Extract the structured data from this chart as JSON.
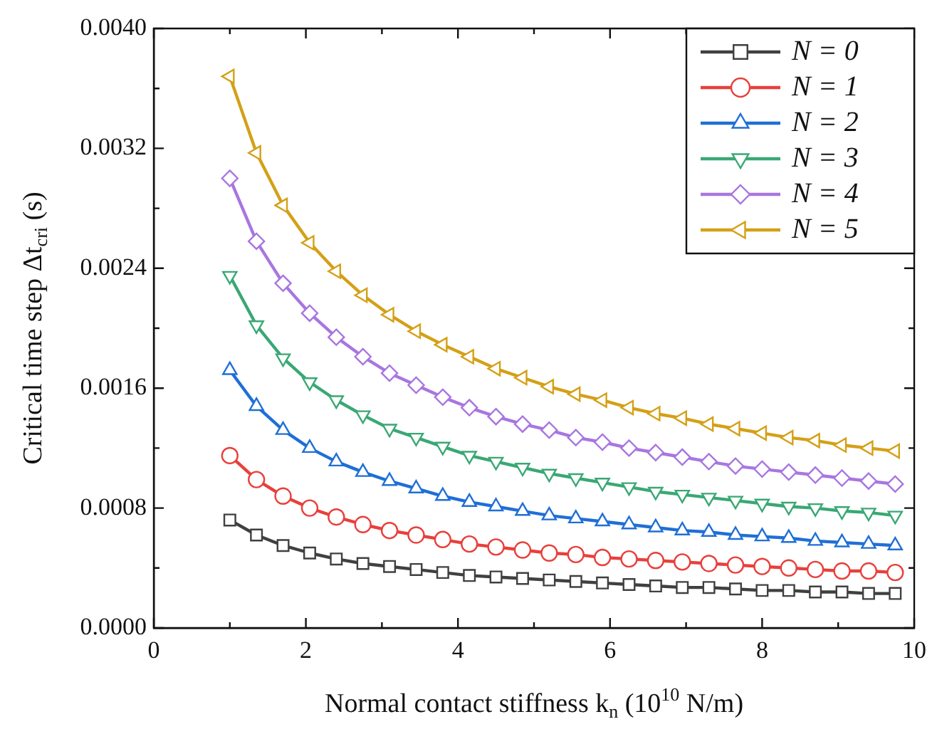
{
  "chart_data": {
    "type": "line",
    "xlabel": "Normal contact stiffness k$_{n}$ (10$^{10}$ N/m)",
    "ylabel": "Critical time step Δt$_{cri}$ (s)",
    "x": [
      1,
      1.35,
      1.7,
      2.05,
      2.4,
      2.75,
      3.1,
      3.45,
      3.8,
      4.15,
      4.5,
      4.85,
      5.2,
      5.55,
      5.9,
      6.25,
      6.6,
      6.95,
      7.3,
      7.65,
      8.0,
      8.35,
      8.7,
      9.05,
      9.4,
      9.75
    ],
    "series": [
      {
        "name": "N = 0",
        "color": "#404040",
        "marker": "square",
        "values": [
          0.00072,
          0.00062,
          0.00055,
          0.0005,
          0.00046,
          0.00043,
          0.00041,
          0.00039,
          0.00037,
          0.00035,
          0.00034,
          0.00033,
          0.00032,
          0.00031,
          0.0003,
          0.00029,
          0.00028,
          0.00027,
          0.00027,
          0.00026,
          0.00025,
          0.00025,
          0.00024,
          0.00024,
          0.00023,
          0.00023
        ]
      },
      {
        "name": "N = 1",
        "color": "#e8403c",
        "marker": "circle",
        "values": [
          0.00115,
          0.00099,
          0.00088,
          0.0008,
          0.00074,
          0.00069,
          0.00065,
          0.00062,
          0.00059,
          0.00056,
          0.00054,
          0.00052,
          0.0005,
          0.00049,
          0.00047,
          0.00046,
          0.00045,
          0.00044,
          0.00043,
          0.00042,
          0.00041,
          0.0004,
          0.00039,
          0.00038,
          0.00038,
          0.00037
        ]
      },
      {
        "name": "N = 2",
        "color": "#1f6fd6",
        "marker": "triangle",
        "values": [
          0.00172,
          0.00148,
          0.00132,
          0.0012,
          0.00111,
          0.00104,
          0.00098,
          0.00093,
          0.00088,
          0.00084,
          0.00081,
          0.00078,
          0.00075,
          0.00073,
          0.00071,
          0.00069,
          0.00067,
          0.00065,
          0.00064,
          0.00062,
          0.00061,
          0.0006,
          0.00058,
          0.00057,
          0.00056,
          0.00055
        ]
      },
      {
        "name": "N = 3",
        "color": "#3aa874",
        "marker": "triangle-down",
        "values": [
          0.00235,
          0.00202,
          0.0018,
          0.00164,
          0.00152,
          0.00142,
          0.00133,
          0.00127,
          0.00121,
          0.00115,
          0.00111,
          0.00107,
          0.00103,
          0.001,
          0.00097,
          0.00094,
          0.00091,
          0.00089,
          0.00087,
          0.00085,
          0.00083,
          0.00081,
          0.0008,
          0.00078,
          0.00077,
          0.00075
        ]
      },
      {
        "name": "N = 4",
        "color": "#a876e0",
        "marker": "diamond",
        "values": [
          0.003,
          0.00258,
          0.0023,
          0.0021,
          0.00194,
          0.00181,
          0.0017,
          0.00162,
          0.00154,
          0.00147,
          0.00141,
          0.00136,
          0.00132,
          0.00127,
          0.00124,
          0.0012,
          0.00117,
          0.00114,
          0.00111,
          0.00108,
          0.00106,
          0.00104,
          0.00102,
          0.001,
          0.00098,
          0.00096
        ]
      },
      {
        "name": "N = 5",
        "color": "#d4a017",
        "marker": "triangle-left",
        "values": [
          0.00368,
          0.00317,
          0.00282,
          0.00257,
          0.00238,
          0.00222,
          0.00209,
          0.00198,
          0.00189,
          0.00181,
          0.00173,
          0.00167,
          0.00161,
          0.00156,
          0.00152,
          0.00147,
          0.00143,
          0.0014,
          0.00136,
          0.00133,
          0.0013,
          0.00127,
          0.00125,
          0.00122,
          0.0012,
          0.00118
        ]
      }
    ],
    "xlim": [
      0,
      10
    ],
    "xticks": [
      0,
      {
        "value": 1,
        "label": null
      },
      2,
      {
        "value": 3,
        "label": null
      },
      4,
      {
        "value": 5,
        "label": null
      },
      6,
      {
        "value": 7,
        "label": null
      },
      8,
      {
        "value": 9,
        "label": null
      },
      10
    ],
    "ylim": [
      0,
      0.004
    ],
    "yticks": [
      {
        "value": 0,
        "label": "0.0000"
      },
      {
        "value": 0.0004,
        "label": null
      },
      {
        "value": 0.0008,
        "label": "0.0008"
      },
      {
        "value": 0.0012,
        "label": null
      },
      {
        "value": 0.0016,
        "label": "0.0016"
      },
      {
        "value": 0.002,
        "label": null
      },
      {
        "value": 0.0024,
        "label": "0.0024"
      },
      {
        "value": 0.0028,
        "label": null
      },
      {
        "value": 0.0032,
        "label": "0.0032"
      },
      {
        "value": 0.0036,
        "label": null
      },
      {
        "value": 0.004,
        "label": "0.0040"
      }
    ],
    "legend": "top right",
    "grid": false,
    "line_style": "solid"
  }
}
